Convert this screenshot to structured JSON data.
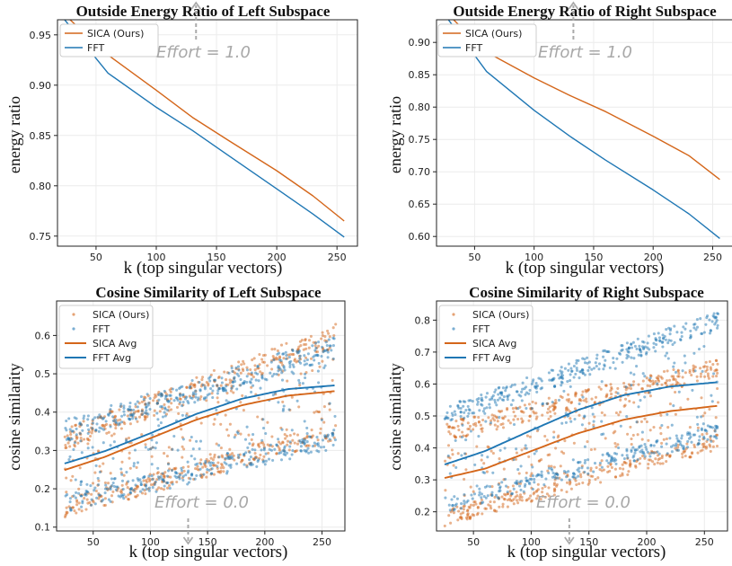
{
  "colors": {
    "sica": "#d4661a",
    "fft": "#1f77b4",
    "arrow": "#aaaaaa",
    "grid": "#ececec"
  },
  "chart_data": [
    {
      "type": "line",
      "title": "Outside Energy Ratio of Left Subspace",
      "xlabel": "k (top singular vectors)",
      "ylabel": "energy ratio",
      "xlim": [
        18,
        267
      ],
      "ylim": [
        0.74,
        0.965
      ],
      "xticks": [
        50,
        100,
        150,
        200,
        250
      ],
      "yticks": [
        0.75,
        0.8,
        0.85,
        0.9,
        0.95
      ],
      "ytick_labels": [
        "0.75",
        "0.80",
        "0.85",
        "0.90",
        "0.95"
      ],
      "grid": true,
      "legend_position": "top-left",
      "legend": [
        "SICA (Ours)",
        "FFT"
      ],
      "annotation": {
        "text": "Effort = 1.0",
        "arrow": "up",
        "x": 133
      },
      "series": [
        {
          "name": "SICA (Ours)",
          "x": [
            24,
            60,
            100,
            130,
            160,
            200,
            230,
            256
          ],
          "values": [
            0.97,
            0.93,
            0.895,
            0.868,
            0.845,
            0.815,
            0.79,
            0.765
          ]
        },
        {
          "name": "FFT",
          "x": [
            24,
            60,
            100,
            130,
            160,
            200,
            230,
            256
          ],
          "values": [
            0.965,
            0.912,
            0.878,
            0.855,
            0.83,
            0.797,
            0.772,
            0.749
          ]
        }
      ]
    },
    {
      "type": "line",
      "title": "Outside Energy Ratio of Right Subspace",
      "xlabel": "k (top singular vectors)",
      "ylabel": "energy ratio",
      "xlim": [
        18,
        267
      ],
      "ylim": [
        0.585,
        0.935
      ],
      "xticks": [
        50,
        100,
        150,
        200,
        250
      ],
      "yticks": [
        0.6,
        0.65,
        0.7,
        0.75,
        0.8,
        0.85,
        0.9
      ],
      "ytick_labels": [
        "0.60",
        "0.65",
        "0.70",
        "0.75",
        "0.80",
        "0.85",
        "0.90"
      ],
      "grid": true,
      "legend_position": "top-left",
      "legend": [
        "SICA (Ours)",
        "FFT"
      ],
      "annotation": {
        "text": "Effort = 1.0",
        "arrow": "up",
        "x": 133
      },
      "series": [
        {
          "name": "SICA (Ours)",
          "x": [
            24,
            60,
            100,
            130,
            160,
            200,
            230,
            256
          ],
          "values": [
            0.95,
            0.885,
            0.845,
            0.818,
            0.793,
            0.755,
            0.725,
            0.688
          ]
        },
        {
          "name": "FFT",
          "x": [
            24,
            60,
            100,
            130,
            160,
            200,
            230,
            256
          ],
          "values": [
            0.945,
            0.855,
            0.795,
            0.755,
            0.718,
            0.672,
            0.635,
            0.597
          ]
        }
      ]
    },
    {
      "type": "scatter",
      "title": "Cosine Similarity of Left Subspace",
      "xlabel": "k (top singular vectors)",
      "ylabel": "cosine similarity",
      "xlim": [
        18,
        270
      ],
      "ylim": [
        0.09,
        0.69
      ],
      "xticks": [
        50,
        100,
        150,
        200,
        250
      ],
      "yticks": [
        0.1,
        0.2,
        0.3,
        0.4,
        0.5,
        0.6
      ],
      "ytick_labels": [
        "0.1",
        "0.2",
        "0.3",
        "0.4",
        "0.5",
        "0.6"
      ],
      "grid": true,
      "legend_position": "top-left",
      "legend": [
        "SICA (Ours)",
        "FFT",
        "SICA Avg",
        "FFT Avg"
      ],
      "annotation": {
        "text": "Effort = 0.0",
        "arrow": "down",
        "x": 133
      },
      "scatter_x_range": [
        25,
        262
      ],
      "scatter_bands": [
        {
          "series": "SICA (Ours)",
          "lo": [
            0.15,
            0.35
          ],
          "hi": [
            0.33,
            0.6
          ]
        },
        {
          "series": "FFT",
          "lo": [
            0.16,
            0.33
          ],
          "hi": [
            0.35,
            0.57
          ]
        }
      ],
      "series": [
        {
          "name": "SICA Avg",
          "x": [
            25,
            60,
            100,
            140,
            180,
            220,
            262
          ],
          "values": [
            0.249,
            0.283,
            0.332,
            0.38,
            0.418,
            0.443,
            0.455
          ]
        },
        {
          "name": "FFT Avg",
          "x": [
            25,
            60,
            100,
            140,
            180,
            220,
            262
          ],
          "values": [
            0.266,
            0.298,
            0.345,
            0.395,
            0.435,
            0.46,
            0.47
          ]
        }
      ]
    },
    {
      "type": "scatter",
      "title": "Cosine Similarity of Right Subspace",
      "xlabel": "k (top singular vectors)",
      "ylabel": "cosine similarity",
      "xlim": [
        18,
        270
      ],
      "ylim": [
        0.14,
        0.86
      ],
      "xticks": [
        50,
        100,
        150,
        200,
        250
      ],
      "yticks": [
        0.2,
        0.3,
        0.4,
        0.5,
        0.6,
        0.7,
        0.8
      ],
      "ytick_labels": [
        "0.2",
        "0.3",
        "0.4",
        "0.5",
        "0.6",
        "0.7",
        "0.8"
      ],
      "grid": true,
      "legend_position": "top-left",
      "legend": [
        "SICA (Ours)",
        "FFT",
        "SICA Avg",
        "FFT Avg"
      ],
      "annotation": {
        "text": "Effort = 0.0",
        "arrow": "down",
        "x": 133
      },
      "scatter_x_range": [
        25,
        262
      ],
      "scatter_bands": [
        {
          "series": "SICA (Ours)",
          "lo": [
            0.18,
            0.42
          ],
          "hi": [
            0.45,
            0.65
          ]
        },
        {
          "series": "FFT",
          "lo": [
            0.22,
            0.45
          ],
          "hi": [
            0.5,
            0.8
          ]
        }
      ],
      "series": [
        {
          "name": "SICA Avg",
          "x": [
            25,
            60,
            100,
            140,
            180,
            220,
            262
          ],
          "values": [
            0.306,
            0.335,
            0.39,
            0.445,
            0.488,
            0.515,
            0.532
          ]
        },
        {
          "name": "FFT Avg",
          "x": [
            25,
            60,
            100,
            140,
            180,
            220,
            262
          ],
          "values": [
            0.348,
            0.39,
            0.455,
            0.518,
            0.565,
            0.592,
            0.606
          ]
        }
      ]
    }
  ]
}
